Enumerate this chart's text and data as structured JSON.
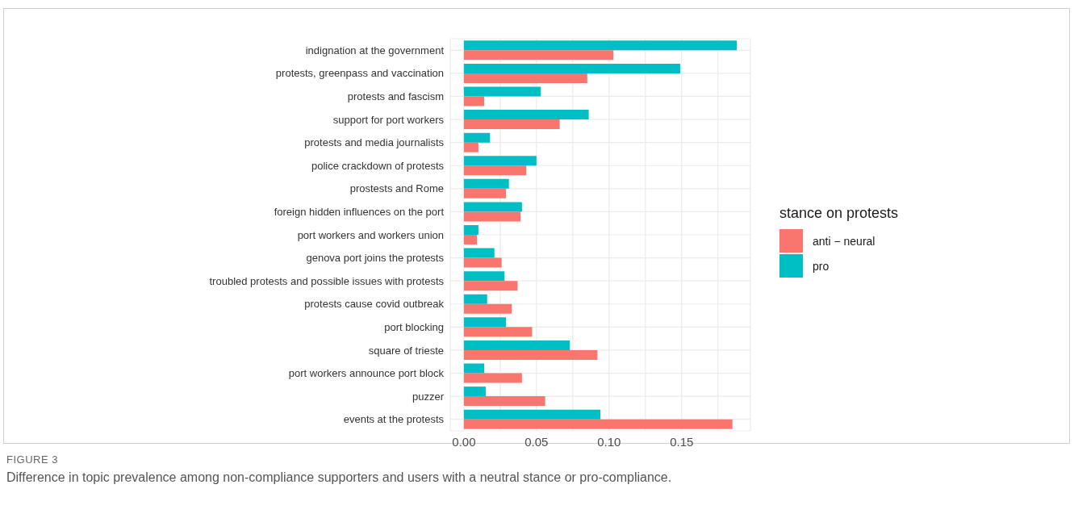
{
  "chart_data": {
    "type": "bar",
    "orientation": "horizontal",
    "legend_title": "stance on protests",
    "legend": "right",
    "grid": true,
    "categories": [
      "indignation at the government",
      "protests, greenpass and vaccination",
      "protests and fascism",
      "support for port workers",
      "protests and media journalists",
      "police crackdown of protests",
      "prostests and Rome",
      "foreign hidden influences on the port",
      "port workers and workers union",
      "genova port joins the protests",
      "troubled protests and possible issues with protests",
      "protests cause covid outbreak",
      "port blocking",
      "square of trieste",
      "port workers announce port block",
      "puzzer",
      "events at the protests"
    ],
    "series": [
      {
        "name": "anti − neural",
        "color": "#f8766d",
        "values": [
          0.103,
          0.085,
          0.014,
          0.066,
          0.01,
          0.043,
          0.029,
          0.039,
          0.009,
          0.026,
          0.037,
          0.033,
          0.047,
          0.092,
          0.04,
          0.056,
          0.185
        ]
      },
      {
        "name": "pro",
        "color": "#00bfc4",
        "values": [
          0.188,
          0.149,
          0.053,
          0.086,
          0.018,
          0.05,
          0.031,
          0.04,
          0.01,
          0.021,
          0.028,
          0.016,
          0.029,
          0.073,
          0.014,
          0.015,
          0.094
        ]
      }
    ],
    "xlim": [
      -0.0094,
      0.1974
    ],
    "xticks": [
      {
        "value": 0,
        "label": "0.00"
      },
      {
        "value": 0.025,
        "label": null
      },
      {
        "value": 0.05,
        "label": "0.05"
      },
      {
        "value": 0.075,
        "label": null
      },
      {
        "value": 0.1,
        "label": "0.10"
      },
      {
        "value": 0.125,
        "label": null
      },
      {
        "value": 0.15,
        "label": "0.15"
      },
      {
        "value": 0.175,
        "label": null
      }
    ],
    "annotations": [
      "FIGURE 3",
      "Difference in topic prevalence among non-compliance supporters and users with a neutral stance or pro-compliance."
    ]
  }
}
